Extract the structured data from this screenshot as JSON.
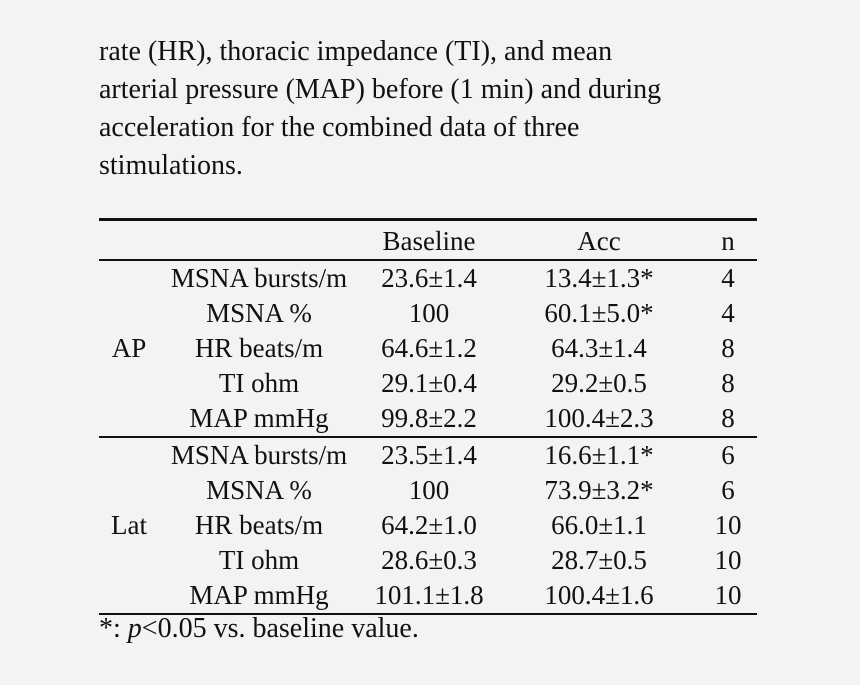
{
  "caption": {
    "lines": [
      "rate (HR), thoracic impedance (TI), and mean",
      "arterial pressure (MAP) before (1 min) and during",
      "acceleration for the combined data of three",
      "stimulations."
    ]
  },
  "table": {
    "headers": {
      "group": "",
      "measure": "",
      "baseline": "Baseline",
      "acc": "Acc",
      "n": "n"
    },
    "groups": [
      {
        "label": "AP",
        "rows": [
          {
            "measure": "MSNA bursts/m",
            "baseline": "23.6±1.4",
            "acc": "13.4±1.3*",
            "n": "4"
          },
          {
            "measure": "MSNA %",
            "baseline": "100",
            "acc": "60.1±5.0*",
            "n": "4"
          },
          {
            "measure": "HR beats/m",
            "baseline": "64.6±1.2",
            "acc": "64.3±1.4",
            "n": "8"
          },
          {
            "measure": "TI ohm",
            "baseline": "29.1±0.4",
            "acc": "29.2±0.5",
            "n": "8"
          },
          {
            "measure": "MAP mmHg",
            "baseline": "99.8±2.2",
            "acc": "100.4±2.3",
            "n": "8"
          }
        ]
      },
      {
        "label": "Lat",
        "rows": [
          {
            "measure": "MSNA bursts/m",
            "baseline": "23.5±1.4",
            "acc": "16.6±1.1*",
            "n": "6"
          },
          {
            "measure": "MSNA %",
            "baseline": "100",
            "acc": "73.9±3.2*",
            "n": "6"
          },
          {
            "measure": "HR beats/m",
            "baseline": "64.2±1.0",
            "acc": "66.0±1.1",
            "n": "10"
          },
          {
            "measure": "TI ohm",
            "baseline": "28.6±0.3",
            "acc": "28.7±0.5",
            "n": "10"
          },
          {
            "measure": "MAP mmHg",
            "baseline": "101.1±1.8",
            "acc": "100.4±1.6",
            "n": "10"
          }
        ]
      }
    ]
  },
  "footnote": {
    "prefix": "*: ",
    "p": "p",
    "suffix": "<0.05 vs. baseline value."
  }
}
